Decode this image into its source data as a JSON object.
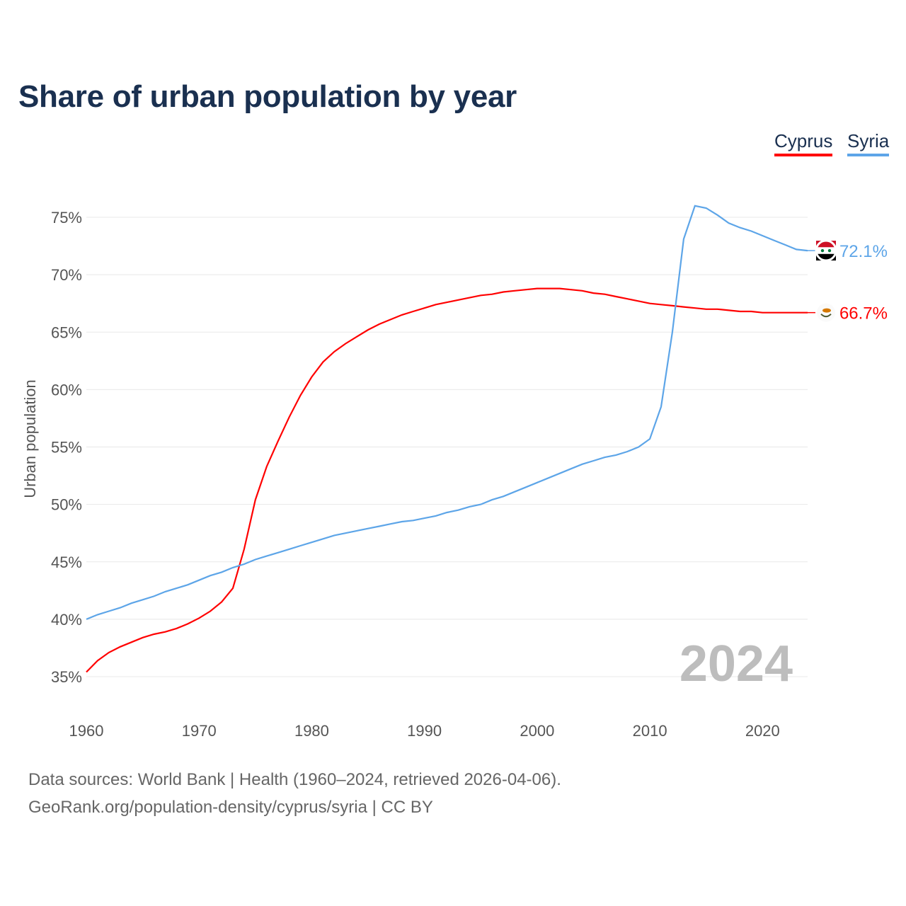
{
  "chart_data": {
    "type": "line",
    "title": "Share of urban population by year",
    "xlabel": "",
    "ylabel": "Urban population",
    "xlim": [
      1960,
      2024
    ],
    "ylim": [
      35,
      75
    ],
    "yticks": [
      35,
      40,
      45,
      50,
      55,
      60,
      65,
      70,
      75
    ],
    "ytick_labels": [
      "35%",
      "40%",
      "45%",
      "50%",
      "55%",
      "60%",
      "65%",
      "70%",
      "75%"
    ],
    "xticks": [
      1960,
      1970,
      1980,
      1990,
      2000,
      2010,
      2020
    ],
    "xtick_labels": [
      "1960",
      "1970",
      "1980",
      "1990",
      "2000",
      "2010",
      "2020"
    ],
    "grid": true,
    "legend_position": "top-right",
    "year_watermark": "2024",
    "x": [
      1960,
      1961,
      1962,
      1963,
      1964,
      1965,
      1966,
      1967,
      1968,
      1969,
      1970,
      1971,
      1972,
      1973,
      1974,
      1975,
      1976,
      1977,
      1978,
      1979,
      1980,
      1981,
      1982,
      1983,
      1984,
      1985,
      1986,
      1987,
      1988,
      1989,
      1990,
      1991,
      1992,
      1993,
      1994,
      1995,
      1996,
      1997,
      1998,
      1999,
      2000,
      2001,
      2002,
      2003,
      2004,
      2005,
      2006,
      2007,
      2008,
      2009,
      2010,
      2011,
      2012,
      2013,
      2014,
      2015,
      2016,
      2017,
      2018,
      2019,
      2020,
      2021,
      2022,
      2023,
      2024
    ],
    "series": [
      {
        "name": "Cyprus",
        "color": "#ff0000",
        "end_label": "66.7%",
        "flag": "cyprus-flag",
        "values": [
          35.4,
          36.4,
          37.1,
          37.6,
          38.0,
          38.4,
          38.7,
          38.9,
          39.2,
          39.6,
          40.1,
          40.7,
          41.5,
          42.7,
          46.1,
          50.4,
          53.3,
          55.5,
          57.6,
          59.5,
          61.1,
          62.4,
          63.3,
          64.0,
          64.6,
          65.2,
          65.7,
          66.1,
          66.5,
          66.8,
          67.1,
          67.4,
          67.6,
          67.8,
          68.0,
          68.2,
          68.3,
          68.5,
          68.6,
          68.7,
          68.8,
          68.8,
          68.8,
          68.7,
          68.6,
          68.4,
          68.3,
          68.1,
          67.9,
          67.7,
          67.5,
          67.4,
          67.3,
          67.2,
          67.1,
          67.0,
          67.0,
          66.9,
          66.8,
          66.8,
          66.7,
          66.7,
          66.7,
          66.7,
          66.7
        ]
      },
      {
        "name": "Syria",
        "color": "#5da5e8",
        "end_label": "72.1%",
        "flag": "syria-flag",
        "values": [
          40.0,
          40.4,
          40.7,
          41.0,
          41.4,
          41.7,
          42.0,
          42.4,
          42.7,
          43.0,
          43.4,
          43.8,
          44.1,
          44.5,
          44.8,
          45.2,
          45.5,
          45.8,
          46.1,
          46.4,
          46.7,
          47.0,
          47.3,
          47.5,
          47.7,
          47.9,
          48.1,
          48.3,
          48.5,
          48.6,
          48.8,
          49.0,
          49.3,
          49.5,
          49.8,
          50.0,
          50.4,
          50.7,
          51.1,
          51.5,
          51.9,
          52.3,
          52.7,
          53.1,
          53.5,
          53.8,
          54.1,
          54.3,
          54.6,
          55.0,
          55.7,
          58.5,
          65.0,
          73.1,
          76.0,
          75.8,
          75.2,
          74.5,
          74.1,
          73.8,
          73.4,
          73.0,
          72.6,
          72.2,
          72.1
        ]
      }
    ]
  },
  "footer": {
    "line1": "Data sources: World Bank | Health (1960–2024, retrieved 2026-04-06).",
    "line2": "GeoRank.org/population-density/cyprus/syria | CC BY"
  }
}
